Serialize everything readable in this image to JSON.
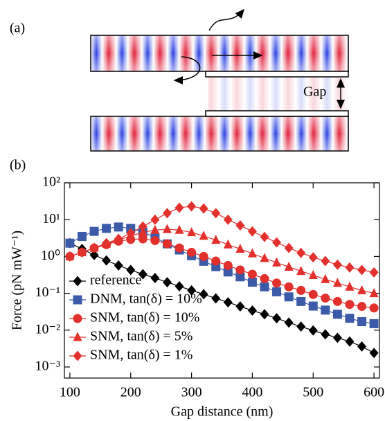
{
  "panel_labels": [
    "(a)",
    "(b)"
  ],
  "diagram": {
    "gap_label": "Gap"
  },
  "chart_data": {
    "type": "line",
    "x_label": "Gap distance (nm)",
    "y_label": "Force (pN mW⁻¹)",
    "x": [
      100,
      120,
      140,
      160,
      180,
      200,
      220,
      240,
      260,
      280,
      300,
      320,
      340,
      360,
      380,
      400,
      420,
      440,
      460,
      480,
      500,
      520,
      540,
      560,
      580,
      600
    ],
    "series": [
      {
        "name": "reference",
        "color": "#000000",
        "marker": "diamond",
        "values": [
          2.3,
          1.6,
          1.1,
          0.78,
          0.57,
          0.43,
          0.33,
          0.26,
          0.2,
          0.155,
          0.12,
          0.094,
          0.073,
          0.057,
          0.044,
          0.034,
          0.027,
          0.021,
          0.016,
          0.0125,
          0.0098,
          0.0077,
          0.0062,
          0.0049,
          0.0036,
          0.0024
        ]
      },
      {
        "name": "DNM, tan(δ) = 10%",
        "color": "#3b5ba9",
        "marker": "square",
        "values": [
          2.3,
          3.5,
          4.8,
          5.8,
          6.3,
          5.8,
          4.6,
          3.3,
          2.2,
          1.5,
          1.05,
          0.74,
          0.53,
          0.38,
          0.28,
          0.2,
          0.15,
          0.11,
          0.08,
          0.06,
          0.045,
          0.035,
          0.027,
          0.021,
          0.017,
          0.015
        ]
      },
      {
        "name": "SNM, tan(δ) = 10%",
        "color": "#e2302c",
        "marker": "circle",
        "values": [
          1.0,
          1.3,
          1.7,
          2.1,
          2.6,
          2.9,
          3.0,
          2.7,
          2.2,
          1.7,
          1.3,
          1.0,
          0.75,
          0.57,
          0.43,
          0.33,
          0.25,
          0.19,
          0.15,
          0.12,
          0.093,
          0.074,
          0.06,
          0.05,
          0.044,
          0.04
        ]
      },
      {
        "name": "SNM, tan(δ) = 5%",
        "color": "#e2302c",
        "marker": "triangle",
        "values": [
          1.0,
          1.3,
          1.7,
          2.2,
          2.8,
          3.6,
          4.5,
          5.2,
          5.5,
          5.2,
          4.5,
          3.6,
          2.8,
          2.1,
          1.6,
          1.2,
          0.9,
          0.68,
          0.52,
          0.4,
          0.31,
          0.24,
          0.19,
          0.15,
          0.12,
          0.1
        ]
      },
      {
        "name": "SNM, tan(δ) = 1%",
        "color": "#e2302c",
        "marker": "diamond",
        "values": [
          1.0,
          1.3,
          1.7,
          2.3,
          3.0,
          4.3,
          6.5,
          10,
          15,
          21,
          23,
          20,
          15,
          10,
          7.0,
          4.8,
          3.4,
          2.4,
          1.7,
          1.25,
          0.95,
          0.75,
          0.6,
          0.5,
          0.43,
          0.37
        ]
      }
    ],
    "xlim": [
      91,
      609
    ],
    "xticks": [
      100,
      200,
      300,
      400,
      500,
      600
    ],
    "ylim": [
      0.0005,
      100
    ],
    "ylog": true,
    "yticks": [
      {
        "value": 0.001,
        "label": "10⁻³"
      },
      {
        "value": 0.01,
        "label": "10⁻²"
      },
      {
        "value": 0.1,
        "label": "10⁻¹"
      },
      {
        "value": 1,
        "label": "10⁰"
      },
      {
        "value": 10,
        "label": "10¹"
      },
      {
        "value": 100,
        "label": "10²"
      }
    ],
    "legend": "lower left"
  }
}
